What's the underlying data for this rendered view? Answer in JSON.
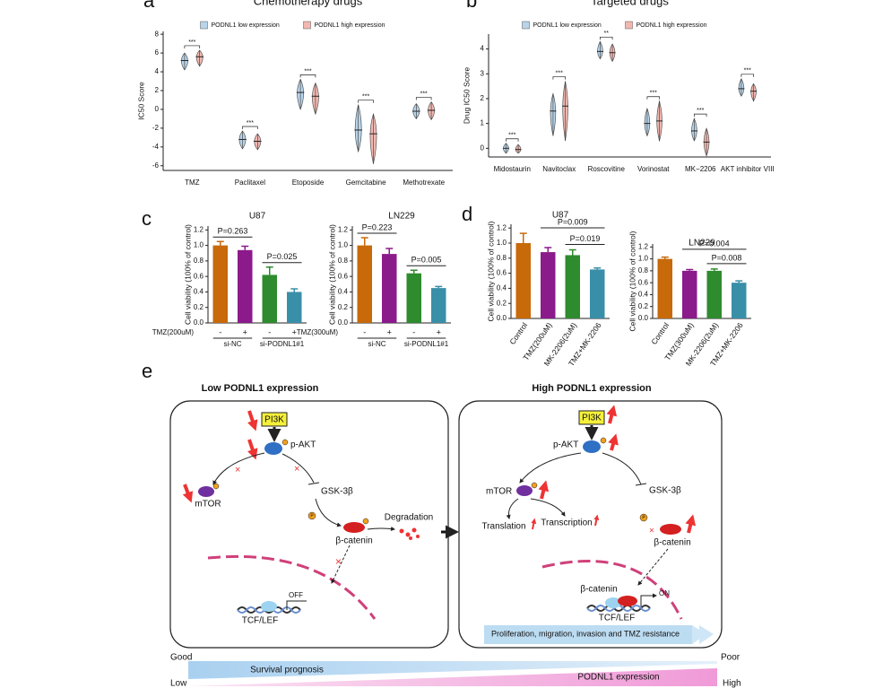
{
  "panel_labels": [
    "a",
    "b",
    "c",
    "d",
    "e"
  ],
  "chart_data": [
    {
      "type": "violin",
      "title": "Chemotherapy drugs",
      "y_label": "IC50 Score",
      "categories": [
        "TMZ",
        "Paclitaxel",
        "Etoposide",
        "Gemcitabine",
        "Methotrexate"
      ],
      "series": [
        {
          "name": "PODNL1 low expression",
          "color": "#b8d4ea",
          "values": [
            5.2,
            -3.2,
            1.8,
            -2.2,
            -0.2
          ],
          "low": [
            4.2,
            -4.2,
            0.0,
            -4.5,
            -1.0
          ],
          "high": [
            6.0,
            -2.3,
            3.2,
            0.5,
            0.6
          ]
        },
        {
          "name": "PODNL1 high expression",
          "color": "#f2b8b0",
          "values": [
            5.6,
            -3.4,
            1.4,
            -2.6,
            -0.1
          ],
          "low": [
            4.6,
            -4.3,
            -0.5,
            -5.8,
            -1.1
          ],
          "high": [
            6.3,
            -2.6,
            2.8,
            -0.5,
            0.8
          ]
        }
      ],
      "annotations": [
        "***",
        "***",
        "***",
        "***",
        "***"
      ],
      "ylim": [
        -6.5,
        8.3
      ],
      "yticks": [
        8,
        6,
        4,
        2,
        0,
        -2,
        -4,
        -6
      ]
    },
    {
      "type": "violin",
      "title": "Targeted drugs",
      "y_label": "Drug IC50 Score",
      "categories": [
        "Midostaurin",
        "Navitoclax",
        "Roscovitine",
        "Vorinostat",
        "MK−2206",
        "AKT inhibitor VIII"
      ],
      "series": [
        {
          "name": "PODNL1 low expression",
          "color": "#b8d4ea",
          "values": [
            0.0,
            1.5,
            3.9,
            1.0,
            0.7,
            2.4
          ],
          "low": [
            -0.2,
            0.5,
            3.6,
            0.5,
            0.3,
            2.1
          ],
          "high": [
            0.2,
            2.2,
            4.3,
            1.6,
            1.2,
            2.8
          ]
        },
        {
          "name": "PODNL1 high expression",
          "color": "#f2b8b0",
          "values": [
            -0.05,
            1.7,
            3.85,
            1.1,
            0.25,
            2.3
          ],
          "low": [
            -0.2,
            0.3,
            3.5,
            0.3,
            -0.3,
            1.9
          ],
          "high": [
            0.15,
            2.7,
            4.2,
            1.9,
            0.8,
            2.6
          ]
        }
      ],
      "annotations": [
        "***",
        "***",
        "**",
        "***",
        "***",
        "***"
      ],
      "ylim": [
        -0.35,
        4.6
      ],
      "yticks": [
        0,
        1,
        2,
        3,
        4
      ]
    },
    {
      "type": "bar",
      "title": "U87",
      "y_label": "Cell viability (100% of control)",
      "treatment_label": "TMZ(200uM)",
      "categories": [
        "-",
        "+",
        "-",
        "+"
      ],
      "groups": [
        "si-NC",
        "si-PODNL1#1"
      ],
      "values": [
        1.0,
        0.94,
        0.62,
        0.4
      ],
      "errors": [
        0.05,
        0.05,
        0.1,
        0.04
      ],
      "colors": [
        "#c8690a",
        "#8b1a8b",
        "#2e8b2e",
        "#3a8fa8"
      ],
      "annotations": [
        "P=0.263",
        "P=0.025"
      ],
      "ylim": [
        0,
        1.25
      ],
      "yticks": [
        {
          "value": 0,
          "label": "0.0"
        },
        {
          "value": 0.2,
          "label": "0.2"
        },
        {
          "value": 0.4,
          "label": "0.4"
        },
        {
          "value": 0.6,
          "label": "0.6"
        },
        {
          "value": 0.8,
          "label": "0.8"
        },
        {
          "value": 1,
          "label": "1.0"
        },
        {
          "value": 1.2,
          "label": "1.2"
        }
      ]
    },
    {
      "type": "bar",
      "title": "LN229",
      "y_label": "Cell viability (100% of control)",
      "treatment_label": "TMZ(300uM)",
      "categories": [
        "-",
        "+",
        "-",
        "+"
      ],
      "groups": [
        "si-NC",
        "si-PODNL1#1"
      ],
      "values": [
        1.0,
        0.89,
        0.64,
        0.45
      ],
      "errors": [
        0.1,
        0.07,
        0.04,
        0.02
      ],
      "colors": [
        "#c8690a",
        "#8b1a8b",
        "#2e8b2e",
        "#3a8fa8"
      ],
      "annotations": [
        "P=0.223",
        "P=0.005"
      ],
      "ylim": [
        0,
        1.25
      ],
      "yticks": [
        {
          "value": 0,
          "label": "0.0"
        },
        {
          "value": 0.2,
          "label": "0.2"
        },
        {
          "value": 0.4,
          "label": "0.4"
        },
        {
          "value": 0.6,
          "label": "0.6"
        },
        {
          "value": 0.8,
          "label": "0.8"
        },
        {
          "value": 1,
          "label": "1.0"
        },
        {
          "value": 1.2,
          "label": "1.2"
        }
      ]
    },
    {
      "type": "bar",
      "title": "U87",
      "y_label": "Cell viability (100% of control)",
      "categories": [
        "Control",
        "TMZ(200uM)",
        "MK-2206(2uM)",
        "TMZ+MK-2206"
      ],
      "values": [
        1.0,
        0.88,
        0.84,
        0.65
      ],
      "errors": [
        0.13,
        0.06,
        0.07,
        0.02
      ],
      "colors": [
        "#c8690a",
        "#8b1a8b",
        "#2e8b2e",
        "#3a8fa8"
      ],
      "annotations": [
        "P=0.009",
        "P=0.019"
      ],
      "ylim": [
        0,
        1.25
      ],
      "yticks": [
        {
          "value": 0,
          "label": "0.0"
        },
        {
          "value": 0.2,
          "label": "0.2"
        },
        {
          "value": 0.4,
          "label": "0.4"
        },
        {
          "value": 0.6,
          "label": "0.6"
        },
        {
          "value": 0.8,
          "label": "0.8"
        },
        {
          "value": 1,
          "label": "1.0"
        },
        {
          "value": 1.2,
          "label": "1.2"
        }
      ]
    },
    {
      "type": "bar",
      "title": "LN229",
      "y_label": "Cell viability (100% of control)",
      "categories": [
        "Control",
        "TMZ(300uM)",
        "MK-2206(2uM)",
        "TMZ+MK-2206"
      ],
      "values": [
        1.0,
        0.8,
        0.8,
        0.6
      ],
      "errors": [
        0.03,
        0.02,
        0.03,
        0.03
      ],
      "colors": [
        "#c8690a",
        "#8b1a8b",
        "#2e8b2e",
        "#3a8fa8"
      ],
      "annotations": [
        "P=0.004",
        "P=0.008"
      ],
      "ylim": [
        0,
        1.25
      ],
      "yticks": [
        {
          "value": 0,
          "label": "0.0"
        },
        {
          "value": 0.2,
          "label": "0.2"
        },
        {
          "value": 0.4,
          "label": "0.4"
        },
        {
          "value": 0.6,
          "label": "0.6"
        },
        {
          "value": 0.8,
          "label": "0.8"
        },
        {
          "value": 1,
          "label": "1.0"
        },
        {
          "value": 1.2,
          "label": "1.2"
        }
      ]
    }
  ],
  "diagram": {
    "left": {
      "title": "Low PODNL1 expression",
      "pi3k": "PI3K",
      "pakt": "p-AKT",
      "mtor": "mTOR",
      "gsk": "GSK-3β",
      "p1": "P",
      "bcat": "β-catenin",
      "degradation": "Degradation",
      "off": "OFF",
      "tcf": "TCF/LEF"
    },
    "right": {
      "title": "High PODNL1 expression",
      "pi3k": "PI3K",
      "pakt": "p-AKT",
      "mtor": "mTOR",
      "gsk": "GSK-3β",
      "p1": "P",
      "translation": "Translation",
      "transcription": "Transcription",
      "bcat": "β-catenin",
      "bcat2": "β-catenin",
      "on": "ON",
      "tcf": "TCF/LEF",
      "outcome": "Proliferation, migration, invasion and TMZ resistance"
    },
    "scale": {
      "good": "Good",
      "poor": "Poor",
      "low": "Low",
      "high": "High",
      "survival": "Survival prognosis",
      "expression": "PODNL1 expression"
    }
  }
}
